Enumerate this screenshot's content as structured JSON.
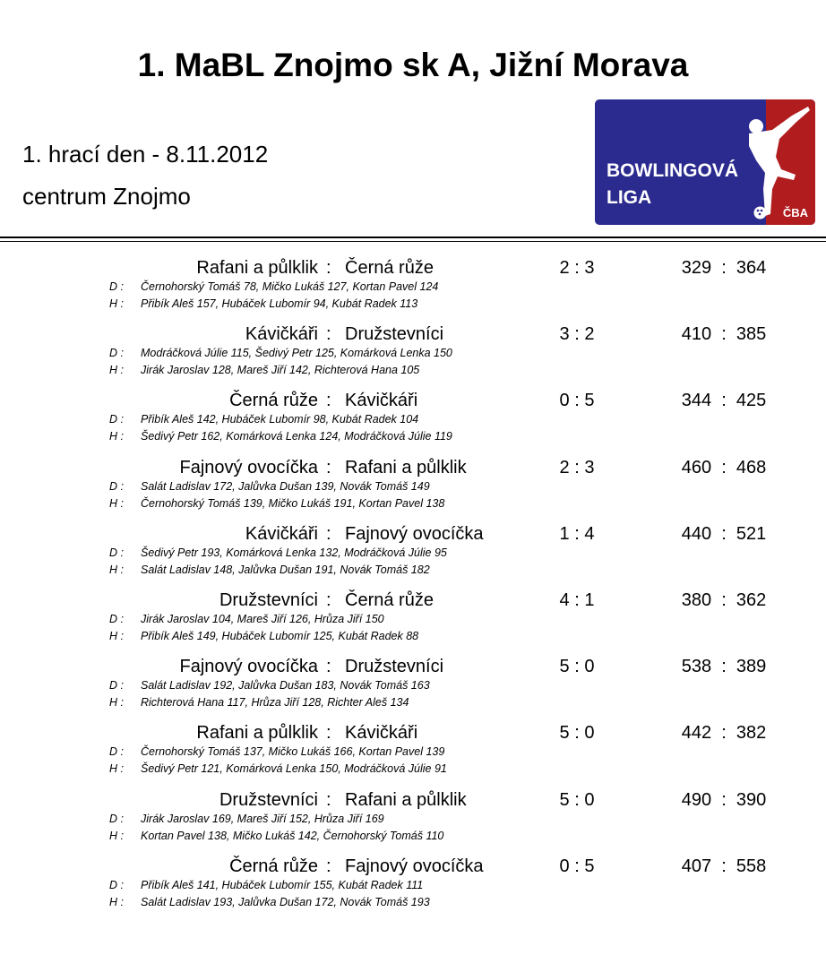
{
  "header": {
    "title": "1. MaBL Znojmo sk A, Jižní Morava",
    "round": "1. hrací den - 8.11.2012",
    "venue": "centrum Znojmo"
  },
  "logo": {
    "line1": "BOWLINGOVÁ",
    "line2": "LIGA",
    "brand": "ČBA",
    "colors": {
      "blue": "#2b2a8e",
      "red": "#b11d1f"
    }
  },
  "labels": {
    "home": "D :",
    "away": "H :",
    "sep": ":"
  },
  "matches": [
    {
      "home": "Rafani a půlklik",
      "away": "Černá růže",
      "score": "2 : 3",
      "pins": "329  :  364",
      "home_players": "Černohorský Tomáš 78, Mičko Lukáš 127, Kortan Pavel 124",
      "away_players": "Přibík Aleš 157, Hubáček Lubomír 94, Kubát Radek 113"
    },
    {
      "home": "Kávičkáři",
      "away": "Družstevníci",
      "score": "3 : 2",
      "pins": "410  :  385",
      "home_players": "Modráčková Júlie 115, Šedivý Petr 125, Komárková Lenka 150",
      "away_players": "Jirák Jaroslav 128, Mareš Jiří 142, Richterová Hana 105"
    },
    {
      "home": "Černá růže",
      "away": "Kávičkáři",
      "score": "0 : 5",
      "pins": "344  :  425",
      "home_players": "Přibík Aleš 142, Hubáček Lubomír 98, Kubát Radek 104",
      "away_players": "Šedivý Petr 162, Komárková Lenka 124, Modráčková Júlie 119"
    },
    {
      "home": "Fajnový ovocíčka",
      "away": "Rafani a půlklik",
      "score": "2 : 3",
      "pins": "460  :  468",
      "home_players": "Salát Ladislav 172, Jalůvka Dušan 139, Novák Tomáš 149",
      "away_players": "Černohorský Tomáš 139, Mičko Lukáš 191, Kortan Pavel 138"
    },
    {
      "home": "Kávičkáři",
      "away": "Fajnový ovocíčka",
      "score": "1 : 4",
      "pins": "440  :  521",
      "home_players": "Šedivý Petr 193, Komárková Lenka 132, Modráčková Júlie 95",
      "away_players": "Salát Ladislav 148, Jalůvka Dušan 191, Novák Tomáš 182"
    },
    {
      "home": "Družstevníci",
      "away": "Černá růže",
      "score": "4 : 1",
      "pins": "380  :  362",
      "home_players": "Jirák Jaroslav 104, Mareš Jiří 126, Hrůza Jiří 150",
      "away_players": "Přibík Aleš 149, Hubáček Lubomír 125, Kubát Radek 88"
    },
    {
      "home": "Fajnový ovocíčka",
      "away": "Družstevníci",
      "score": "5 : 0",
      "pins": "538  :  389",
      "home_players": "Salát Ladislav 192, Jalůvka Dušan 183, Novák Tomáš 163",
      "away_players": "Richterová Hana 117, Hrůza Jiří 128, Richter Aleš 134"
    },
    {
      "home": "Rafani a půlklik",
      "away": "Kávičkáři",
      "score": "5 : 0",
      "pins": "442  :  382",
      "home_players": "Černohorský Tomáš 137, Mičko Lukáš 166, Kortan Pavel 139",
      "away_players": "Šedivý Petr 121, Komárková Lenka 150, Modráčková Júlie 91"
    },
    {
      "home": "Družstevníci",
      "away": "Rafani a půlklik",
      "score": "5 : 0",
      "pins": "490  :  390",
      "home_players": "Jirák Jaroslav 169, Mareš Jiří 152, Hrůza Jiří 169",
      "away_players": "Kortan Pavel 138, Mičko Lukáš 142, Černohorský Tomáš 110"
    },
    {
      "home": "Černá růže",
      "away": "Fajnový ovocíčka",
      "score": "0 : 5",
      "pins": "407  :  558",
      "home_players": "Přibík Aleš 141, Hubáček Lubomír 155, Kubát Radek 111",
      "away_players": "Salát Ladislav 193, Jalůvka Dušan 172, Novák Tomáš 193"
    }
  ]
}
